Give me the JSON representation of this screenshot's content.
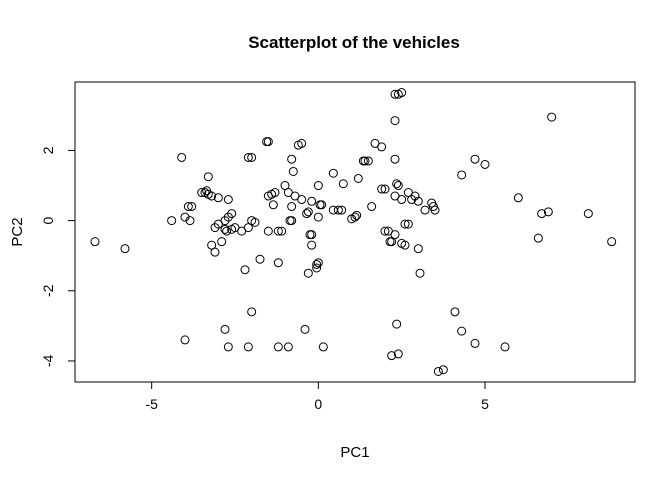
{
  "chart_data": {
    "type": "scatter",
    "title": "Scatterplot of the vehicles",
    "xlabel": "PC1",
    "ylabel": "PC2",
    "xlim": [
      -7.3,
      9.5
    ],
    "ylim": [
      -4.6,
      3.95
    ],
    "xticks": [
      -5,
      0,
      5
    ],
    "yticks": [
      -4,
      -2,
      0,
      2
    ],
    "xtick_labels": [
      "-5",
      "0",
      "5"
    ],
    "ytick_labels": [
      "-4",
      "-2",
      "0",
      "2"
    ],
    "grid": false,
    "legend": "none",
    "marker": "open-circle",
    "color": "#000000",
    "points": [
      [
        -6.7,
        -0.6
      ],
      [
        -5.8,
        -0.8
      ],
      [
        -4.4,
        0.0
      ],
      [
        -4.1,
        1.8
      ],
      [
        -4.0,
        0.1
      ],
      [
        -3.9,
        0.4
      ],
      [
        -3.85,
        0.0
      ],
      [
        -3.8,
        0.4
      ],
      [
        -4.0,
        -3.4
      ],
      [
        -3.5,
        0.8
      ],
      [
        -3.4,
        0.8
      ],
      [
        -3.3,
        0.75
      ],
      [
        -3.3,
        1.25
      ],
      [
        -3.2,
        0.7
      ],
      [
        -3.1,
        -0.2
      ],
      [
        -3.2,
        -0.7
      ],
      [
        -3.0,
        -0.1
      ],
      [
        -3.0,
        0.65
      ],
      [
        -2.9,
        -0.6
      ],
      [
        -3.1,
        -0.9
      ],
      [
        -2.8,
        0.0
      ],
      [
        -2.7,
        0.1
      ],
      [
        -2.75,
        -0.3
      ],
      [
        -2.6,
        -0.25
      ],
      [
        -2.5,
        -0.2
      ],
      [
        -2.7,
        0.6
      ],
      [
        -2.6,
        0.2
      ],
      [
        -2.8,
        -3.1
      ],
      [
        -2.7,
        -3.6
      ],
      [
        -2.3,
        -0.3
      ],
      [
        -2.2,
        -1.4
      ],
      [
        -2.1,
        -0.2
      ],
      [
        -2.1,
        1.8
      ],
      [
        -2.0,
        1.8
      ],
      [
        -2.0,
        0.0
      ],
      [
        -1.9,
        -0.05
      ],
      [
        -2.0,
        -2.6
      ],
      [
        -2.1,
        -3.6
      ],
      [
        -1.75,
        -1.1
      ],
      [
        -1.5,
        0.7
      ],
      [
        -1.4,
        0.75
      ],
      [
        -1.5,
        2.25
      ],
      [
        -1.3,
        0.8
      ],
      [
        -1.5,
        -0.3
      ],
      [
        -1.2,
        -0.3
      ],
      [
        -1.1,
        -0.3
      ],
      [
        -1.0,
        1.0
      ],
      [
        -0.9,
        0.8
      ],
      [
        -1.2,
        -1.2
      ],
      [
        -1.2,
        -3.6
      ],
      [
        -0.9,
        -3.6
      ],
      [
        -0.85,
        0.0
      ],
      [
        -0.8,
        0.4
      ],
      [
        -0.8,
        1.75
      ],
      [
        -0.75,
        1.4
      ],
      [
        -0.7,
        0.7
      ],
      [
        -0.6,
        2.15
      ],
      [
        -0.5,
        2.2
      ],
      [
        -0.5,
        0.6
      ],
      [
        -0.35,
        0.2
      ],
      [
        -0.3,
        0.25
      ],
      [
        -0.2,
        0.55
      ],
      [
        -0.25,
        -0.4
      ],
      [
        -0.2,
        -0.7
      ],
      [
        -0.3,
        -1.5
      ],
      [
        -0.05,
        -1.25
      ],
      [
        -0.05,
        -1.35
      ],
      [
        0.0,
        -1.2
      ],
      [
        0.05,
        0.45
      ],
      [
        0.0,
        1.0
      ],
      [
        0.0,
        0.1
      ],
      [
        0.1,
        0.45
      ],
      [
        -0.4,
        -3.1
      ],
      [
        0.15,
        -3.6
      ],
      [
        0.45,
        1.35
      ],
      [
        0.45,
        0.3
      ],
      [
        0.6,
        0.3
      ],
      [
        0.7,
        0.3
      ],
      [
        0.75,
        1.05
      ],
      [
        1.0,
        0.05
      ],
      [
        1.1,
        0.1
      ],
      [
        1.2,
        1.2
      ],
      [
        1.4,
        1.7
      ],
      [
        1.5,
        1.7
      ],
      [
        1.6,
        0.4
      ],
      [
        1.7,
        2.2
      ],
      [
        1.9,
        2.1
      ],
      [
        1.9,
        0.9
      ],
      [
        2.0,
        0.9
      ],
      [
        2.0,
        -0.3
      ],
      [
        2.1,
        -0.3
      ],
      [
        2.15,
        -0.6
      ],
      [
        2.2,
        -0.6
      ],
      [
        2.3,
        0.7
      ],
      [
        2.35,
        1.05
      ],
      [
        2.4,
        1.0
      ],
      [
        2.3,
        -0.4
      ],
      [
        2.5,
        0.6
      ],
      [
        2.6,
        -0.1
      ],
      [
        2.7,
        0.8
      ],
      [
        2.7,
        -0.1
      ],
      [
        2.8,
        0.6
      ],
      [
        2.9,
        0.7
      ],
      [
        3.0,
        0.55
      ],
      [
        3.0,
        -0.8
      ],
      [
        3.05,
        -1.5
      ],
      [
        3.2,
        0.3
      ],
      [
        3.4,
        0.5
      ],
      [
        3.45,
        0.4
      ],
      [
        3.5,
        0.3
      ],
      [
        2.3,
        2.85
      ],
      [
        2.3,
        3.6
      ],
      [
        2.4,
        3.6
      ],
      [
        2.5,
        3.65
      ],
      [
        2.3,
        1.75
      ],
      [
        2.2,
        -3.85
      ],
      [
        2.4,
        -3.8
      ],
      [
        2.35,
        -2.95
      ],
      [
        3.6,
        -4.3
      ],
      [
        3.75,
        -4.25
      ],
      [
        4.1,
        -2.6
      ],
      [
        4.3,
        1.3
      ],
      [
        4.3,
        -3.15
      ],
      [
        4.7,
        1.75
      ],
      [
        4.7,
        -3.5
      ],
      [
        5.0,
        1.6
      ],
      [
        5.6,
        -3.6
      ],
      [
        6.0,
        0.65
      ],
      [
        6.6,
        -0.5
      ],
      [
        6.7,
        0.2
      ],
      [
        6.9,
        0.25
      ],
      [
        7.0,
        2.95
      ],
      [
        8.1,
        0.2
      ],
      [
        8.8,
        -0.6
      ],
      [
        2.5,
        -0.65
      ],
      [
        2.6,
        -0.7
      ],
      [
        -3.35,
        0.85
      ],
      [
        -1.55,
        2.25
      ],
      [
        -1.35,
        0.45
      ],
      [
        1.35,
        1.7
      ],
      [
        -0.8,
        0.0
      ],
      [
        -2.8,
        -0.25
      ],
      [
        1.15,
        0.15
      ],
      [
        -0.2,
        -0.4
      ]
    ]
  }
}
